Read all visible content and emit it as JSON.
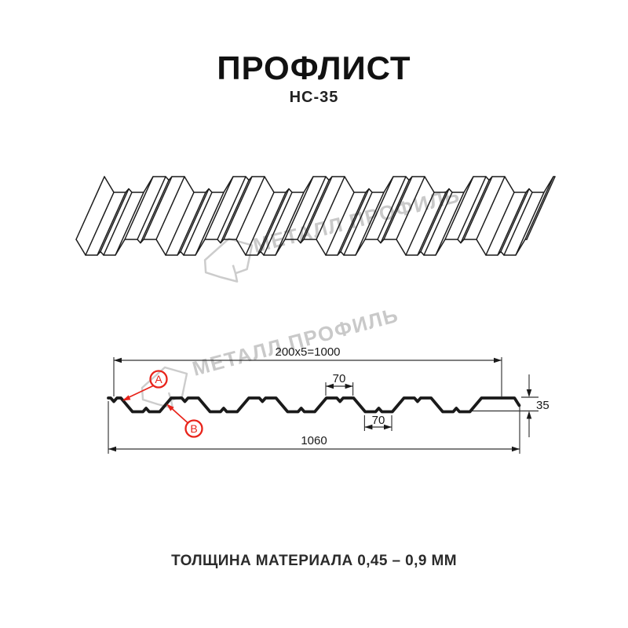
{
  "header": {
    "title": "ПРОФЛИСТ",
    "subtitle": "НС-35"
  },
  "footer": {
    "note": "ТОЛЩИНА МАТЕРИАЛА 0,45 – 0,9 ММ"
  },
  "watermark": {
    "text": "МЕТАЛЛ ПРОФИЛЬ",
    "color": "#c9c9c9"
  },
  "dimensions": {
    "useful_width": "200x5=1000",
    "overall_width": "1060",
    "flange_width": "70",
    "trough_width": "70",
    "height": "35"
  },
  "callouts": {
    "a": "A",
    "b": "B"
  },
  "colors": {
    "line": "#1a1a1a",
    "thin_line": "#333333",
    "accent_red": "#e8231a",
    "watermark_gray": "#c9c9c9"
  }
}
